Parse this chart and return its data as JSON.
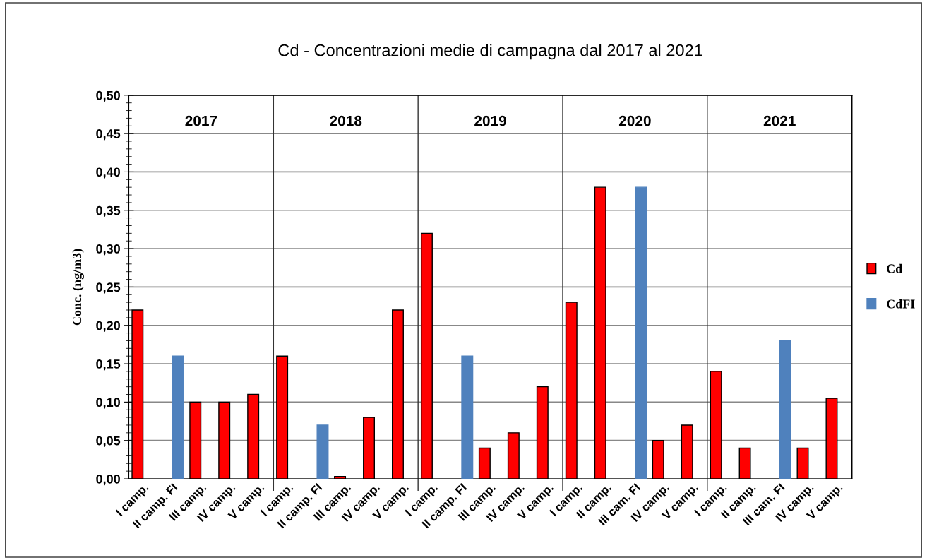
{
  "chart_data": {
    "type": "bar",
    "title": "Cd - Concentrazioni medie di campagna dal 2017 al 2021",
    "ylabel": "Conc. (ng/m3)",
    "categories": [
      "I camp.",
      "II camp. FI",
      "III camp.",
      "IV camp.",
      "V camp.",
      "I camp.",
      "II camp. FI",
      "III camp.",
      "IV camp.",
      "V camp.",
      "I camp.",
      "II camp. FI",
      "III camp.",
      "IV camp.",
      "V camp.",
      "I camp.",
      "II camp.",
      "III cam. FI",
      "IV camp.",
      "V camp.",
      "I camp.",
      "II camp.",
      "III cam. FI",
      "IV camp.",
      "V camp."
    ],
    "series": [
      {
        "name": "Cd",
        "color": "#ff0000",
        "values": [
          0.22,
          null,
          0.1,
          0.1,
          0.11,
          0.16,
          null,
          0.003,
          0.08,
          0.22,
          0.32,
          null,
          0.04,
          0.06,
          0.12,
          0.23,
          0.38,
          null,
          0.05,
          0.07,
          0.14,
          0.04,
          null,
          0.04,
          0.105
        ]
      },
      {
        "name": "CdFI",
        "color": "#4f81bd",
        "values": [
          null,
          0.16,
          null,
          null,
          null,
          null,
          0.07,
          null,
          null,
          null,
          null,
          0.16,
          null,
          null,
          null,
          null,
          null,
          0.38,
          null,
          null,
          null,
          null,
          0.18,
          null,
          null
        ]
      }
    ],
    "annotations": [
      "2017",
      "2018",
      "2019",
      "2020",
      "2021"
    ],
    "ylim": [
      0,
      0.5
    ],
    "yticks": [
      {
        "value": 0,
        "label": "0,00"
      },
      {
        "value": 0.05,
        "label": "0,05"
      },
      {
        "value": 0.1,
        "label": "0,10"
      },
      {
        "value": 0.15,
        "label": "0,15"
      },
      {
        "value": 0.2,
        "label": "0,20"
      },
      {
        "value": 0.25,
        "label": "0,25"
      },
      {
        "value": 0.3,
        "label": "0,30"
      },
      {
        "value": 0.35,
        "label": "0,35"
      },
      {
        "value": 0.4,
        "label": "0,40"
      },
      {
        "value": 0.45,
        "label": "0,45"
      },
      {
        "value": 0.5,
        "label": "0,50"
      }
    ],
    "grid": "y",
    "legend": "right"
  }
}
